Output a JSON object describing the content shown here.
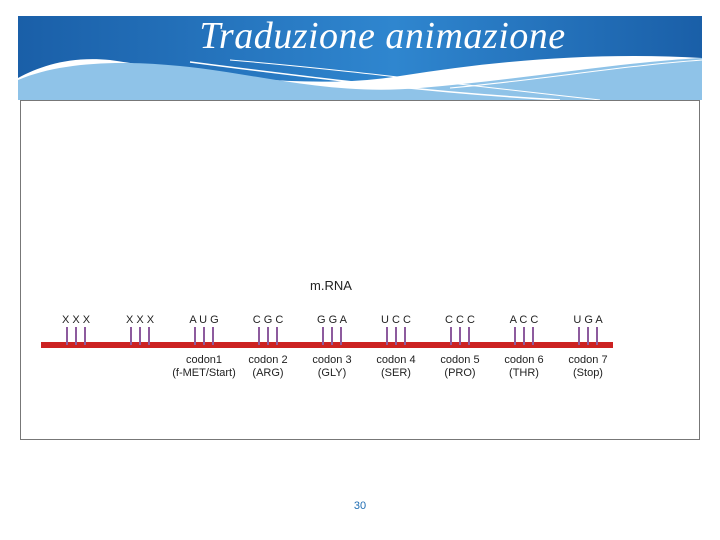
{
  "slide": {
    "title": "Traduzione animazione",
    "page_number": "30"
  },
  "figure": {
    "label": "m.RNA",
    "colors": {
      "strand": "#cc2222",
      "tick": "#8d5b9e",
      "text": "#222222",
      "banner_dark": "#1a5fa8",
      "banner_light": "#8fc3e8"
    },
    "triplets": [
      "X X X",
      "X X X",
      "A U G",
      "C G C",
      "G G A",
      "U C C",
      "C C C",
      "A C C",
      "U G A"
    ],
    "codons": [
      {
        "name": "codon1",
        "amino": "(f-MET/Start)"
      },
      {
        "name": "codon 2",
        "amino": "(ARG)"
      },
      {
        "name": "codon 3",
        "amino": "(GLY)"
      },
      {
        "name": "codon 4",
        "amino": "(SER)"
      },
      {
        "name": "codon 5",
        "amino": "(PRO)"
      },
      {
        "name": "codon 6",
        "amino": "(THR)"
      },
      {
        "name": "codon 7",
        "amino": "(Stop)"
      }
    ]
  }
}
